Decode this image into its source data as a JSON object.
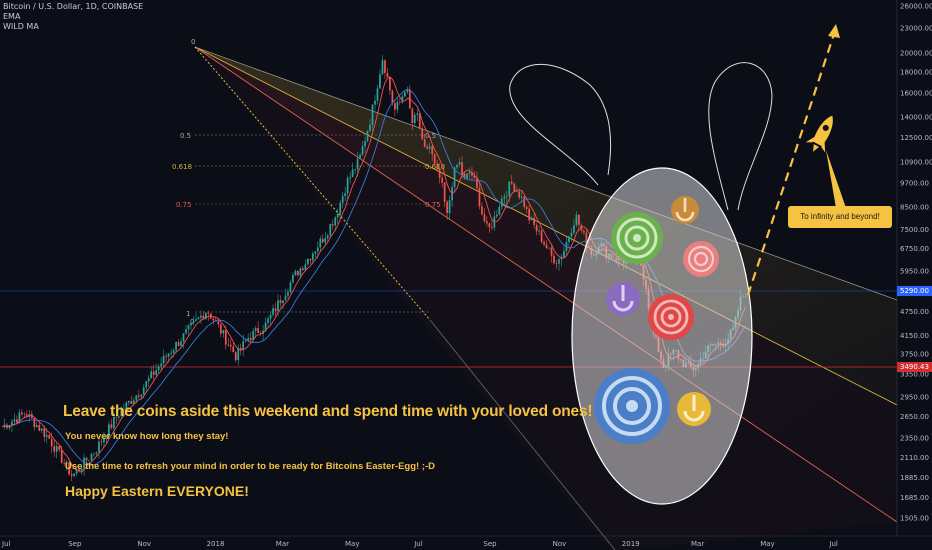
{
  "legend": {
    "symbol": "Bitcoin / U.S. Dollar, 1D, COINBASE",
    "ind1": "EMA",
    "ind2": "WILD MA"
  },
  "chart_data": {
    "type": "candlestick",
    "x_ticks": [
      "Jul",
      "Sep",
      "Nov",
      "2018",
      "Mar",
      "May",
      "Jul",
      "Sep",
      "Nov",
      "2019",
      "Mar",
      "May",
      "Jul"
    ],
    "y_ticks": [
      "26000.00",
      "23000.00",
      "20000.00",
      "18000.00",
      "16000.00",
      "14000.00",
      "12500.00",
      "10900.00",
      "9700.00",
      "8500.00",
      "7500.00",
      "6750.00",
      "5950.00",
      "4750.00",
      "4150.00",
      "3750.00",
      "3350.00",
      "2950.00",
      "2650.00",
      "2350.00",
      "2110.00",
      "1885.00",
      "1685.00",
      "1505.00"
    ],
    "y_scale": "log",
    "price_path": [
      [
        0,
        2500
      ],
      [
        4,
        2700
      ],
      [
        8,
        2350
      ],
      [
        12,
        1900
      ],
      [
        16,
        2200
      ],
      [
        20,
        2700
      ],
      [
        24,
        3100
      ],
      [
        28,
        3700
      ],
      [
        32,
        4300
      ],
      [
        35,
        4800
      ],
      [
        37,
        4350
      ],
      [
        40,
        3700
      ],
      [
        42,
        4100
      ],
      [
        45,
        4400
      ],
      [
        48,
        5200
      ],
      [
        50,
        5800
      ],
      [
        52,
        6300
      ],
      [
        55,
        7200
      ],
      [
        57,
        8100
      ],
      [
        59,
        9800
      ],
      [
        61,
        11000
      ],
      [
        63,
        14000
      ],
      [
        64,
        16500
      ],
      [
        65,
        19500
      ],
      [
        66,
        17000
      ],
      [
        67,
        14500
      ],
      [
        68,
        15200
      ],
      [
        69,
        16800
      ],
      [
        70,
        13500
      ],
      [
        71,
        14200
      ],
      [
        72,
        11500
      ],
      [
        73,
        12000
      ],
      [
        74,
        10500
      ],
      [
        75,
        9800
      ],
      [
        76,
        8000
      ],
      [
        77,
        10000
      ],
      [
        78,
        11000
      ],
      [
        79,
        9800
      ],
      [
        80,
        10400
      ],
      [
        81,
        9500
      ],
      [
        82,
        8200
      ],
      [
        83,
        7400
      ],
      [
        84,
        7900
      ],
      [
        85,
        8700
      ],
      [
        86,
        9200
      ],
      [
        87,
        9700
      ],
      [
        88,
        9300
      ],
      [
        89,
        8800
      ],
      [
        90,
        8000
      ],
      [
        91,
        7600
      ],
      [
        92,
        7200
      ],
      [
        93,
        6800
      ],
      [
        94,
        6400
      ],
      [
        95,
        6300
      ],
      [
        96,
        6700
      ],
      [
        97,
        7400
      ],
      [
        98,
        8100
      ],
      [
        99,
        7400
      ],
      [
        100,
        6900
      ],
      [
        101,
        6500
      ],
      [
        102,
        7000
      ],
      [
        103,
        6600
      ],
      [
        104,
        6500
      ],
      [
        105,
        6400
      ],
      [
        106,
        6300
      ],
      [
        107,
        6400
      ],
      [
        108,
        6350
      ],
      [
        109,
        6300
      ],
      [
        110,
        5500
      ],
      [
        111,
        4300
      ],
      [
        112,
        3900
      ],
      [
        113,
        3500
      ],
      [
        114,
        3700
      ],
      [
        115,
        3800
      ],
      [
        116,
        3600
      ],
      [
        117,
        3500
      ],
      [
        118,
        3450
      ],
      [
        119,
        3550
      ],
      [
        120,
        3800
      ],
      [
        121,
        3900
      ],
      [
        122,
        3950
      ],
      [
        123,
        4000
      ],
      [
        124,
        4100
      ],
      [
        125,
        4300
      ],
      [
        126,
        5000
      ],
      [
        127,
        5290
      ]
    ],
    "current_price": "5290.00",
    "ref_price": "3490.43",
    "fib_labels": [
      "0",
      "0.5",
      "0.618",
      "0.75",
      "1"
    ],
    "annotation": "To infinity and beyond!"
  },
  "messages": {
    "headline": "Leave the coins aside this weekend and spend time with your loved ones!",
    "line2": "You never know how long they stay!",
    "line3": "Use the time to refresh your mind in order to be ready for Bitcoins Easter-Egg! ;-D",
    "line4": "Happy Eastern EVERYONE!"
  },
  "colors": {
    "background": "#0b0d17",
    "up": "#26a69a",
    "down": "#ef5350",
    "ema": "#3c78d8",
    "wild_ma": "#ef5350",
    "accent": "#f5c242",
    "current_price_bg": "#2962ff",
    "ref_price_bg": "#d32f2f"
  }
}
